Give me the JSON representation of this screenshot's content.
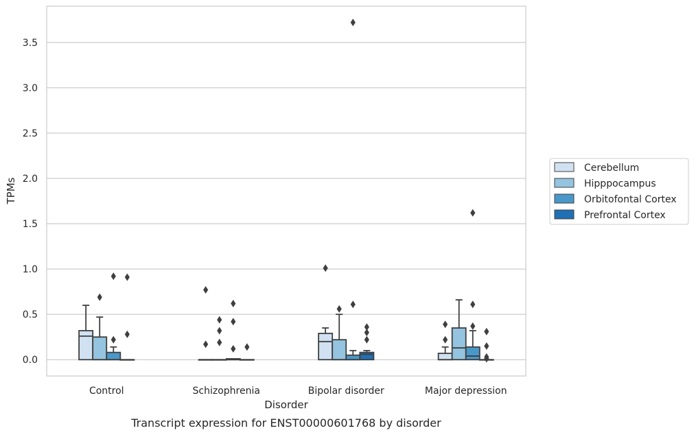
{
  "chart_data": {
    "type": "box",
    "xlabel": "Disorder",
    "ylabel": "TPMs",
    "caption": "Transcript expression for ENST00000601768 by disorder",
    "ylim": [
      -0.18,
      3.9
    ],
    "yticks": [
      0.0,
      0.5,
      1.0,
      1.5,
      2.0,
      2.5,
      3.0,
      3.5
    ],
    "ytick_labels": [
      "0.0",
      "0.5",
      "1.0",
      "1.5",
      "2.0",
      "2.5",
      "3.0",
      "3.5"
    ],
    "grid": "horizontal",
    "legend_placement": "right",
    "categories": [
      "Control",
      "Schizophrenia",
      "Bipolar disorder",
      "Major depression"
    ],
    "series": [
      {
        "name": "Cerebellum",
        "color": "#d0e1f2",
        "boxes": [
          {
            "q1": 0.0,
            "median": 0.26,
            "q3": 0.32,
            "whisker_low": 0.0,
            "whisker_high": 0.6,
            "outliers": []
          },
          {
            "q1": 0.0,
            "median": 0.0,
            "q3": 0.0,
            "whisker_low": 0.0,
            "whisker_high": 0.0,
            "outliers": [
              0.77,
              0.17
            ]
          },
          {
            "q1": 0.0,
            "median": 0.2,
            "q3": 0.29,
            "whisker_low": 0.0,
            "whisker_high": 0.35,
            "outliers": [
              1.01
            ]
          },
          {
            "q1": 0.0,
            "median": 0.0,
            "q3": 0.07,
            "whisker_low": 0.0,
            "whisker_high": 0.14,
            "outliers": [
              0.39,
              0.22
            ]
          }
        ]
      },
      {
        "name": "Hipppocampus",
        "color": "#94c4df",
        "boxes": [
          {
            "q1": 0.0,
            "median": 0.0,
            "q3": 0.25,
            "whisker_low": 0.0,
            "whisker_high": 0.47,
            "outliers": [
              0.69
            ]
          },
          {
            "q1": 0.0,
            "median": 0.0,
            "q3": 0.0,
            "whisker_low": 0.0,
            "whisker_high": 0.0,
            "outliers": [
              0.44,
              0.32,
              0.19
            ]
          },
          {
            "q1": 0.0,
            "median": 0.0,
            "q3": 0.22,
            "whisker_low": 0.0,
            "whisker_high": 0.5,
            "outliers": [
              0.56
            ]
          },
          {
            "q1": 0.0,
            "median": 0.13,
            "q3": 0.35,
            "whisker_low": 0.0,
            "whisker_high": 0.66,
            "outliers": []
          }
        ]
      },
      {
        "name": "Orbitofontal Cortex",
        "color": "#4a98c9",
        "boxes": [
          {
            "q1": 0.0,
            "median": 0.0,
            "q3": 0.08,
            "whisker_low": 0.0,
            "whisker_high": 0.14,
            "outliers": [
              0.92,
              0.22
            ]
          },
          {
            "q1": 0.0,
            "median": 0.0,
            "q3": 0.01,
            "whisker_low": 0.0,
            "whisker_high": 0.01,
            "outliers": [
              0.62,
              0.42,
              0.12
            ]
          },
          {
            "q1": 0.0,
            "median": 0.0,
            "q3": 0.05,
            "whisker_low": 0.0,
            "whisker_high": 0.1,
            "outliers": [
              3.72,
              0.61
            ]
          },
          {
            "q1": 0.0,
            "median": 0.04,
            "q3": 0.14,
            "whisker_low": 0.0,
            "whisker_high": 0.32,
            "outliers": [
              1.62,
              0.61,
              0.37
            ]
          }
        ]
      },
      {
        "name": "Prefrontal Cortex",
        "color": "#2070b4",
        "boxes": [
          {
            "q1": 0.0,
            "median": 0.0,
            "q3": 0.0,
            "whisker_low": 0.0,
            "whisker_high": 0.0,
            "outliers": [
              0.91,
              0.28
            ]
          },
          {
            "q1": 0.0,
            "median": 0.0,
            "q3": 0.0,
            "whisker_low": 0.0,
            "whisker_high": 0.0,
            "outliers": [
              0.14
            ]
          },
          {
            "q1": 0.0,
            "median": 0.06,
            "q3": 0.08,
            "whisker_low": 0.0,
            "whisker_high": 0.1,
            "outliers": [
              0.36,
              0.3,
              0.22
            ]
          },
          {
            "q1": 0.0,
            "median": 0.0,
            "q3": 0.0,
            "whisker_low": 0.0,
            "whisker_high": 0.0,
            "outliers": [
              0.31,
              0.15,
              0.03,
              0.01
            ]
          }
        ]
      }
    ]
  }
}
